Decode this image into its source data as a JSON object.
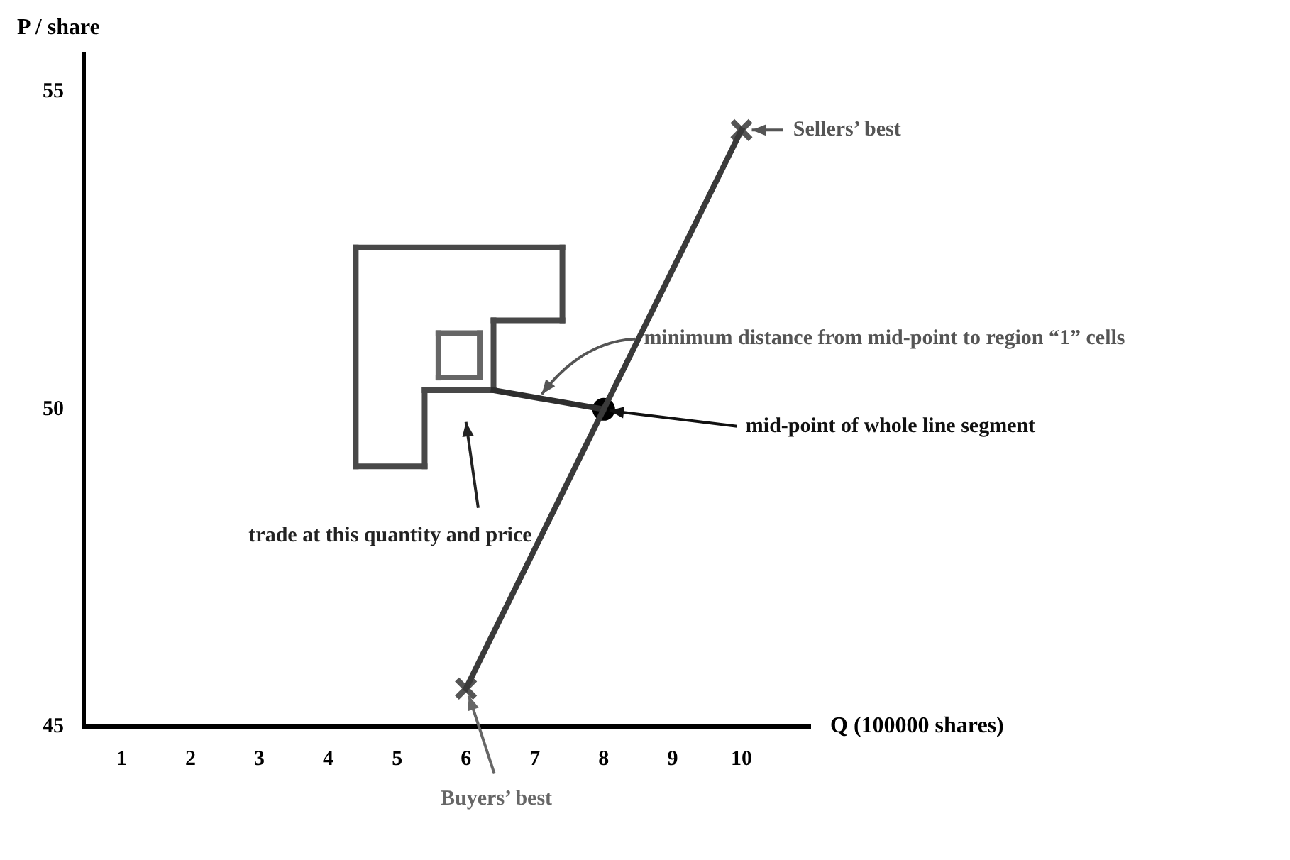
{
  "chart_data": {
    "type": "line",
    "xlabel": "Q (100000 shares)",
    "ylabel": "P / share",
    "xlim": [
      0.45,
      11
    ],
    "ylim": [
      45,
      55.6
    ],
    "xticks": [
      1,
      2,
      3,
      4,
      5,
      6,
      7,
      8,
      9,
      10
    ],
    "yticks": [
      45,
      50,
      55
    ],
    "grid": false,
    "legend": false,
    "series": [
      {
        "type": "line",
        "color": "#3a3a3a",
        "x": [
          6,
          10
        ],
        "values": [
          45.6,
          54.4
        ]
      },
      {
        "type": "line",
        "color": "#2e2e2e",
        "x": [
          6.4,
          8
        ],
        "values": [
          50.3,
          50
        ]
      },
      {
        "type": "line",
        "color": "#484848",
        "x": [
          4.4,
          7.4
        ],
        "values": [
          52.55,
          52.55
        ]
      },
      {
        "type": "line",
        "color": "#484848",
        "x": [
          7.4,
          7.4
        ],
        "values": [
          52.55,
          51.4
        ]
      },
      {
        "type": "line",
        "color": "#484848",
        "x": [
          7.4,
          6.4
        ],
        "values": [
          51.4,
          51.4
        ]
      },
      {
        "type": "line",
        "color": "#484848",
        "x": [
          6.4,
          6.4
        ],
        "values": [
          51.4,
          50.3
        ]
      },
      {
        "type": "line",
        "color": "#484848",
        "x": [
          6.4,
          5.4
        ],
        "values": [
          50.3,
          50.3
        ]
      },
      {
        "type": "line",
        "color": "#484848",
        "x": [
          5.4,
          5.4
        ],
        "values": [
          50.3,
          49.1
        ]
      },
      {
        "type": "line",
        "color": "#484848",
        "x": [
          5.4,
          4.4
        ],
        "values": [
          49.1,
          49.1
        ]
      },
      {
        "type": "line",
        "color": "#484848",
        "x": [
          4.4,
          4.4
        ],
        "values": [
          49.1,
          52.55
        ]
      },
      {
        "type": "line",
        "color": "#666666",
        "x": [
          5.6,
          6.2
        ],
        "values": [
          51.2,
          51.2
        ]
      },
      {
        "type": "line",
        "color": "#666666",
        "x": [
          6.2,
          6.2
        ],
        "values": [
          51.2,
          50.5
        ]
      },
      {
        "type": "line",
        "color": "#666666",
        "x": [
          6.2,
          5.6
        ],
        "values": [
          50.5,
          50.5
        ]
      },
      {
        "type": "line",
        "color": "#666666",
        "x": [
          5.6,
          5.6
        ],
        "values": [
          50.5,
          51.2
        ]
      },
      {
        "type": "scatter",
        "marker": "cross",
        "color": "#555555",
        "x": [
          6,
          10
        ],
        "values": [
          45.6,
          54.4
        ]
      },
      {
        "type": "scatter",
        "marker": "circle",
        "color": "#000000",
        "x": [
          8
        ],
        "values": [
          50
        ]
      }
    ],
    "annotations": [
      "Sellers’ best",
      {
        "text": "Buyers’ best",
        "x": 6,
        "y": 45.6
      },
      {
        "text": "mid-point of whole line segment",
        "x": 8,
        "y": 50
      },
      {
        "text": "minimum distance from mid-point to region “1” cells",
        "x": 7.1,
        "y": 50.17
      },
      "trade at this quantity and price"
    ]
  }
}
